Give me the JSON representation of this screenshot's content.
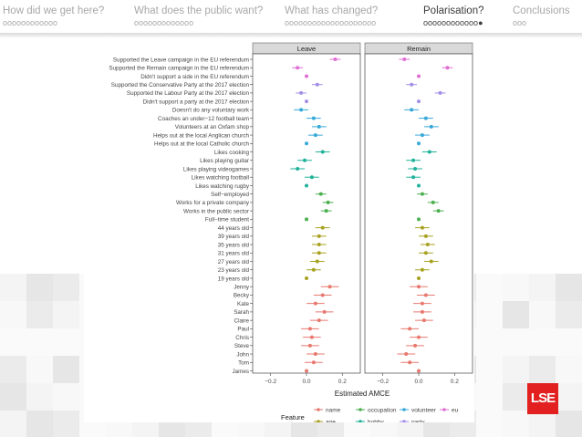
{
  "nav": [
    {
      "label": "How did we get here?",
      "dots": "oooooooooooo",
      "active": false
    },
    {
      "label": "What does the public want?",
      "dots": "ooooooooooooo",
      "active": false
    },
    {
      "label": "What has changed?",
      "dots": "oooooooooooooooooooo",
      "active": false
    },
    {
      "label": "Polarisation?",
      "dots": "oooooooooooo●",
      "active": true
    },
    {
      "label": "Conclusions",
      "dots": "ooo",
      "active": false
    }
  ],
  "logo": {
    "text": "LSE",
    "color": "#e1201f"
  },
  "chart_data": {
    "type": "scatter",
    "title": "",
    "xlabel": "Estimated AMCE",
    "xlim": [
      -0.3,
      0.3
    ],
    "xticks": [
      -0.2,
      0.0,
      0.2
    ],
    "xtick_labels": [
      "−0.2",
      "0.0",
      "0.2"
    ],
    "panels": [
      "Leave",
      "Remain"
    ],
    "legend_title": "Feature",
    "legend": [
      {
        "name": "name",
        "color": "#e8796f"
      },
      {
        "name": "occupation",
        "color": "#4caf50"
      },
      {
        "name": "volunteer",
        "color": "#38a9d8"
      },
      {
        "name": "eu",
        "color": "#df6fd3"
      },
      {
        "name": "age",
        "color": "#a7a221"
      },
      {
        "name": "hobby",
        "color": "#20b29a"
      },
      {
        "name": "party",
        "color": "#a48ee8"
      }
    ],
    "rows": [
      {
        "label": "Supported the Leave campaign in the EU referendum",
        "feature": "eu",
        "leave": [
          0.16,
          0.03
        ],
        "remain": [
          -0.08,
          0.03
        ]
      },
      {
        "label": "Supported the Remain campaign in the EU referendum",
        "feature": "eu",
        "leave": [
          -0.05,
          0.03
        ],
        "remain": [
          0.16,
          0.03
        ]
      },
      {
        "label": "Didn't support a side in the EU referendum",
        "feature": "eu",
        "leave": [
          0.0,
          0.0
        ],
        "remain": [
          0.0,
          0.0
        ]
      },
      {
        "label": "Supported the Conservative Party at the 2017 election",
        "feature": "party",
        "leave": [
          0.06,
          0.03
        ],
        "remain": [
          -0.04,
          0.03
        ]
      },
      {
        "label": "Supported the Labour Party at the 2017 election",
        "feature": "party",
        "leave": [
          -0.03,
          0.03
        ],
        "remain": [
          0.12,
          0.03
        ]
      },
      {
        "label": "Didn't support a party at the 2017 election",
        "feature": "party",
        "leave": [
          0.0,
          0.0
        ],
        "remain": [
          0.0,
          0.0
        ]
      },
      {
        "label": "Doesn't do any voluntary work",
        "feature": "volunteer",
        "leave": [
          -0.03,
          0.04
        ],
        "remain": [
          -0.04,
          0.04
        ]
      },
      {
        "label": "Coaches an under−12 football team",
        "feature": "volunteer",
        "leave": [
          0.04,
          0.04
        ],
        "remain": [
          0.04,
          0.04
        ]
      },
      {
        "label": "Volunteers at an Oxfam shop",
        "feature": "volunteer",
        "leave": [
          0.07,
          0.04
        ],
        "remain": [
          0.07,
          0.04
        ]
      },
      {
        "label": "Helps out at the local Anglican church",
        "feature": "volunteer",
        "leave": [
          0.05,
          0.04
        ],
        "remain": [
          0.02,
          0.04
        ]
      },
      {
        "label": "Helps out at the local Catholic church",
        "feature": "volunteer",
        "leave": [
          0.0,
          0.0
        ],
        "remain": [
          0.0,
          0.0
        ]
      },
      {
        "label": "Likes cooking",
        "feature": "hobby",
        "leave": [
          0.09,
          0.04
        ],
        "remain": [
          0.06,
          0.04
        ]
      },
      {
        "label": "Likes playing guitar",
        "feature": "hobby",
        "leave": [
          -0.01,
          0.04
        ],
        "remain": [
          -0.03,
          0.04
        ]
      },
      {
        "label": "Likes playing videogames",
        "feature": "hobby",
        "leave": [
          -0.05,
          0.04
        ],
        "remain": [
          -0.02,
          0.04
        ]
      },
      {
        "label": "Likes watching football",
        "feature": "hobby",
        "leave": [
          0.03,
          0.04
        ],
        "remain": [
          -0.03,
          0.04
        ]
      },
      {
        "label": "Likes watching rugby",
        "feature": "hobby",
        "leave": [
          0.0,
          0.0
        ],
        "remain": [
          0.0,
          0.0
        ]
      },
      {
        "label": "Self−employed",
        "feature": "occupation",
        "leave": [
          0.08,
          0.03
        ],
        "remain": [
          0.02,
          0.03
        ]
      },
      {
        "label": "Works for a private company",
        "feature": "occupation",
        "leave": [
          0.12,
          0.03
        ],
        "remain": [
          0.08,
          0.03
        ]
      },
      {
        "label": "Works in the public sector",
        "feature": "occupation",
        "leave": [
          0.11,
          0.03
        ],
        "remain": [
          0.11,
          0.03
        ]
      },
      {
        "label": "Full−time student",
        "feature": "occupation",
        "leave": [
          0.0,
          0.0
        ],
        "remain": [
          0.0,
          0.0
        ]
      },
      {
        "label": "44 years old",
        "feature": "age",
        "leave": [
          0.09,
          0.04
        ],
        "remain": [
          0.02,
          0.04
        ]
      },
      {
        "label": "39 years old",
        "feature": "age",
        "leave": [
          0.07,
          0.04
        ],
        "remain": [
          0.04,
          0.04
        ]
      },
      {
        "label": "35 years old",
        "feature": "age",
        "leave": [
          0.07,
          0.04
        ],
        "remain": [
          0.05,
          0.04
        ]
      },
      {
        "label": "31 years old",
        "feature": "age",
        "leave": [
          0.07,
          0.04
        ],
        "remain": [
          0.04,
          0.04
        ]
      },
      {
        "label": "27 years old",
        "feature": "age",
        "leave": [
          0.06,
          0.04
        ],
        "remain": [
          0.07,
          0.04
        ]
      },
      {
        "label": "23 years old",
        "feature": "age",
        "leave": [
          0.04,
          0.04
        ],
        "remain": [
          0.02,
          0.04
        ]
      },
      {
        "label": "19 years old",
        "feature": "age",
        "leave": [
          0.0,
          0.0
        ],
        "remain": [
          0.0,
          0.0
        ]
      },
      {
        "label": "Jenny",
        "feature": "name",
        "leave": [
          0.13,
          0.05
        ],
        "remain": [
          0.0,
          0.05
        ]
      },
      {
        "label": "Becky",
        "feature": "name",
        "leave": [
          0.09,
          0.05
        ],
        "remain": [
          0.04,
          0.05
        ]
      },
      {
        "label": "Kate",
        "feature": "name",
        "leave": [
          0.05,
          0.05
        ],
        "remain": [
          0.02,
          0.05
        ]
      },
      {
        "label": "Sarah",
        "feature": "name",
        "leave": [
          0.1,
          0.05
        ],
        "remain": [
          0.02,
          0.05
        ]
      },
      {
        "label": "Claire",
        "feature": "name",
        "leave": [
          0.07,
          0.05
        ],
        "remain": [
          0.03,
          0.05
        ]
      },
      {
        "label": "Paul",
        "feature": "name",
        "leave": [
          0.02,
          0.05
        ],
        "remain": [
          -0.05,
          0.05
        ]
      },
      {
        "label": "Chris",
        "feature": "name",
        "leave": [
          0.03,
          0.05
        ],
        "remain": [
          0.0,
          0.05
        ]
      },
      {
        "label": "Steve",
        "feature": "name",
        "leave": [
          0.02,
          0.05
        ],
        "remain": [
          -0.02,
          0.05
        ]
      },
      {
        "label": "John",
        "feature": "name",
        "leave": [
          0.05,
          0.05
        ],
        "remain": [
          -0.07,
          0.05
        ]
      },
      {
        "label": "Tom",
        "feature": "name",
        "leave": [
          0.04,
          0.05
        ],
        "remain": [
          -0.05,
          0.05
        ]
      },
      {
        "label": "James",
        "feature": "name",
        "leave": [
          0.0,
          0.0
        ],
        "remain": [
          0.0,
          0.0
        ]
      }
    ]
  }
}
